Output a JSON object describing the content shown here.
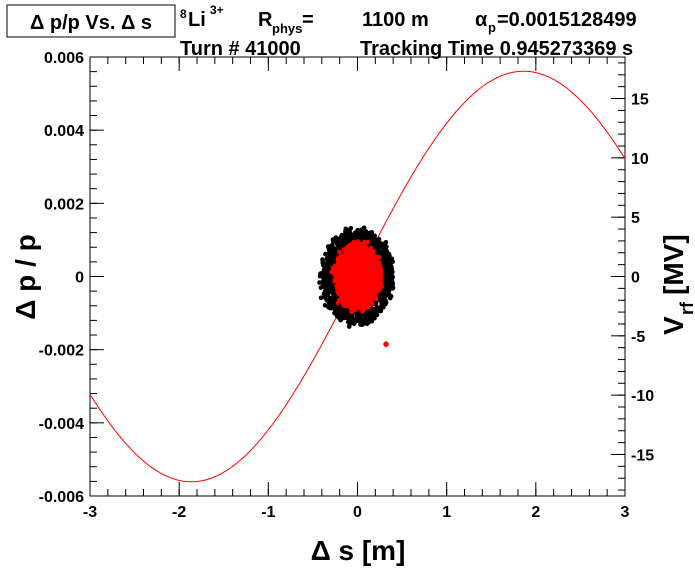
{
  "header": {
    "title_box": "Δ p/p Vs. Δ s",
    "isotope": {
      "mass": "8",
      "symbol": "Li",
      "charge": "3+"
    },
    "rphys": {
      "base": "R",
      "sub": "phys",
      "eq": "=",
      "value": "1100 m"
    },
    "alpha": {
      "base": "α",
      "sub": "p",
      "value": "=0.0015128499"
    },
    "turn": "Turn # 41000",
    "tracking_time": "Tracking Time 0.945273369 s"
  },
  "chart_data": {
    "type": "scatter",
    "xlabel": "Δ s [m]",
    "ylabel": "Δ p / p",
    "y2label": {
      "base": "V",
      "sub": "rf",
      "rest": " [MV]"
    },
    "xlim": [
      -3,
      3
    ],
    "ylim": [
      -0.006,
      0.006
    ],
    "y2lim": [
      -18.5,
      18.5
    ],
    "xticks": [
      "-3",
      "-2",
      "-1",
      "0",
      "1",
      "2",
      "3"
    ],
    "yticks": [
      "-0.006",
      "-0.004",
      "-0.002",
      "0",
      "0.002",
      "0.004",
      "0.006"
    ],
    "y2ticks": [
      "-15",
      "-10",
      "-5",
      "0",
      "5",
      "10",
      "15"
    ],
    "rf_curve": {
      "amplitude_MV": 17.3,
      "period_m": 7.45,
      "color": "#ff0000"
    },
    "series": [
      {
        "color": "#000000",
        "center": [
          0.0,
          0.0
        ],
        "spread_s": 0.4,
        "spread_dp": 0.0013
      },
      {
        "color": "#ff0000",
        "center": [
          0.0,
          0.0
        ],
        "spread_s": 0.25,
        "spread_dp": 0.0009
      }
    ],
    "outlier": {
      "x": 0.32,
      "y": -0.00185,
      "color": "#ff0000"
    },
    "grid": false
  }
}
